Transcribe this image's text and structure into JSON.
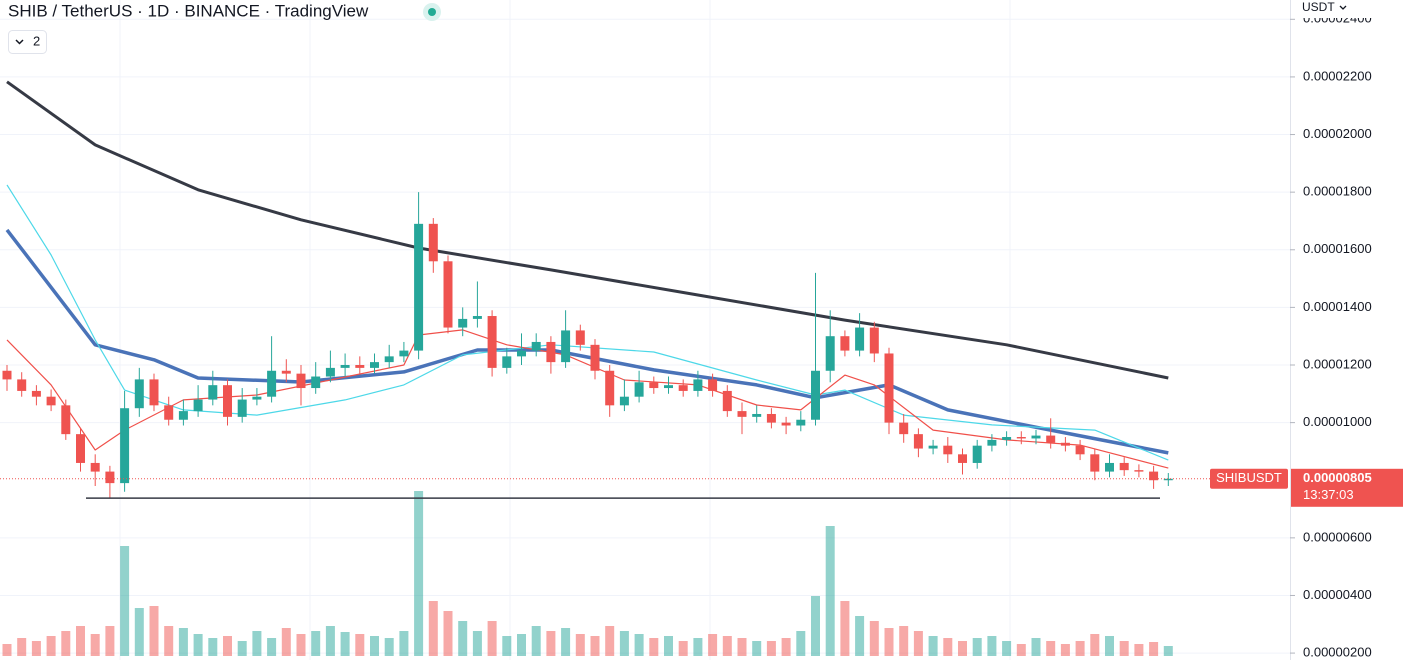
{
  "chart_data": {
    "type": "candlestick",
    "title": "SHIB / TetherUS · 1D · BINANCE · TradingView",
    "indicator_count": "2",
    "currency": "USDT",
    "symbol_label": "SHIBUSDT",
    "last_price": {
      "value": 8.05e-06,
      "label": "0.00000805"
    },
    "countdown": "13:37:03",
    "ylim": [
      1.76e-06,
      2.467e-05
    ],
    "yticks": [
      {
        "value": 2e-06,
        "label": "0.00000200"
      },
      {
        "value": 4e-06,
        "label": "0.00000400"
      },
      {
        "value": 6e-06,
        "label": "0.00000600"
      },
      {
        "value": 1e-05,
        "label": "0.00001000"
      },
      {
        "value": 1.2e-05,
        "label": "0.00001200"
      },
      {
        "value": 1.4e-05,
        "label": "0.00001400"
      },
      {
        "value": 1.6e-05,
        "label": "0.00001600"
      },
      {
        "value": 1.8e-05,
        "label": "0.00001800"
      },
      {
        "value": 2e-05,
        "label": "0.00002000"
      },
      {
        "value": 2.2e-05,
        "label": "0.00002200"
      },
      {
        "value": 2.4e-05,
        "label": "0.00002400"
      }
    ],
    "grid": true,
    "up_color": "#26a69a",
    "down_color": "#ef5350",
    "candles": {
      "open": [
        1.18e-05,
        1.15e-05,
        1.11e-05,
        1.09e-05,
        1.06e-05,
        9.6e-06,
        8.6e-06,
        8.3e-06,
        7.9e-06,
        1.05e-05,
        1.15e-05,
        1.06e-05,
        1.01e-05,
        1.04e-05,
        1.08e-05,
        1.13e-05,
        1.02e-05,
        1.08e-05,
        1.09e-05,
        1.18e-05,
        1.17e-05,
        1.12e-05,
        1.16e-05,
        1.19e-05,
        1.2e-05,
        1.19e-05,
        1.21e-05,
        1.23e-05,
        1.25e-05,
        1.69e-05,
        1.56e-05,
        1.33e-05,
        1.36e-05,
        1.37e-05,
        1.19e-05,
        1.23e-05,
        1.25e-05,
        1.28e-05,
        1.21e-05,
        1.32e-05,
        1.27e-05,
        1.18e-05,
        1.06e-05,
        1.09e-05,
        1.14e-05,
        1.12e-05,
        1.13e-05,
        1.11e-05,
        1.15e-05,
        1.11e-05,
        1.04e-05,
        1.02e-05,
        1.03e-05,
        1e-05,
        9.9e-06,
        1.01e-05,
        1.18e-05,
        1.3e-05,
        1.25e-05,
        1.33e-05,
        1.24e-05,
        1e-05,
        9.6e-06,
        9.1e-06,
        9.2e-06,
        8.9e-06,
        8.6e-06,
        9.2e-06,
        9.4e-06,
        9.5e-06,
        9.45e-06,
        9.55e-06,
        9.3e-06,
        9.2e-06,
        8.9e-06,
        8.3e-06,
        8.6e-06,
        8.35e-06,
        8.3e-06,
        8e-06
      ],
      "high": [
        1.2e-05,
        1.175e-05,
        1.13e-05,
        1.115e-05,
        1.08e-05,
        9.8e-06,
        8.9e-06,
        8.5e-06,
        1.11e-05,
        1.19e-05,
        1.17e-05,
        1.09e-05,
        1.08e-05,
        1.13e-05,
        1.18e-05,
        1.15e-05,
        1.12e-05,
        1.12e-05,
        1.3e-05,
        1.22e-05,
        1.2e-05,
        1.21e-05,
        1.25e-05,
        1.24e-05,
        1.23e-05,
        1.24e-05,
        1.27e-05,
        1.28e-05,
        1.8e-05,
        1.71e-05,
        1.58e-05,
        1.4e-05,
        1.49e-05,
        1.39e-05,
        1.26e-05,
        1.31e-05,
        1.31e-05,
        1.3e-05,
        1.39e-05,
        1.34e-05,
        1.29e-05,
        1.2e-05,
        1.15e-05,
        1.18e-05,
        1.16e-05,
        1.16e-05,
        1.15e-05,
        1.18e-05,
        1.17e-05,
        1.13e-05,
        1.07e-05,
        1.06e-05,
        1.05e-05,
        1.02e-05,
        1.04e-05,
        1.52e-05,
        1.39e-05,
        1.32e-05,
        1.38e-05,
        1.35e-05,
        1.26e-05,
        1.03e-05,
        9.8e-06,
        9.4e-06,
        9.5e-06,
        9.1e-06,
        9.4e-06,
        9.6e-06,
        9.7e-06,
        9.7e-06,
        9.75e-06,
        1.015e-05,
        9.5e-06,
        9.4e-06,
        9.1e-06,
        8.9e-06,
        8.8e-06,
        8.55e-06,
        8.5e-06,
        8.25e-06
      ],
      "low": [
        1.11e-05,
        1.09e-05,
        1.06e-05,
        1.04e-05,
        9.4e-06,
        8.3e-06,
        7.8e-06,
        7.4e-06,
        7.6e-06,
        1.02e-05,
        1.04e-05,
        9.9e-06,
        9.9e-06,
        1.02e-05,
        1.06e-05,
        9.9e-06,
        1e-05,
        1.06e-05,
        1.07e-05,
        1.14e-05,
        1.06e-05,
        1.1e-05,
        1.14e-05,
        1.16e-05,
        1.17e-05,
        1.17e-05,
        1.19e-05,
        1.21e-05,
        1.22e-05,
        1.52e-05,
        1.31e-05,
        1.3e-05,
        1.33e-05,
        1.16e-05,
        1.17e-05,
        1.2e-05,
        1.23e-05,
        1.17e-05,
        1.19e-05,
        1.25e-05,
        1.15e-05,
        1.02e-05,
        1.04e-05,
        1.07e-05,
        1.1e-05,
        1.1e-05,
        1.09e-05,
        1.09e-05,
        1.09e-05,
        1.02e-05,
        9.6e-06,
        1e-05,
        9.8e-06,
        9.6e-06,
        9.7e-06,
        9.9e-06,
        1.14e-05,
        1.23e-05,
        1.23e-05,
        1.21e-05,
        9.6e-06,
        9.3e-06,
        8.8e-06,
        8.9e-06,
        8.6e-06,
        8.2e-06,
        8.4e-06,
        9e-06,
        9.2e-06,
        9.25e-06,
        9.25e-06,
        9.1e-06,
        9e-06,
        8.7e-06,
        8e-06,
        8.1e-06,
        8.15e-06,
        8.1e-06,
        7.7e-06,
        7.8e-06
      ],
      "close": [
        1.15e-05,
        1.11e-05,
        1.09e-05,
        1.06e-05,
        9.6e-06,
        8.6e-06,
        8.3e-06,
        7.9e-06,
        1.05e-05,
        1.15e-05,
        1.06e-05,
        1.01e-05,
        1.04e-05,
        1.08e-05,
        1.13e-05,
        1.02e-05,
        1.08e-05,
        1.09e-05,
        1.18e-05,
        1.17e-05,
        1.12e-05,
        1.16e-05,
        1.19e-05,
        1.2e-05,
        1.19e-05,
        1.21e-05,
        1.23e-05,
        1.25e-05,
        1.69e-05,
        1.56e-05,
        1.33e-05,
        1.36e-05,
        1.37e-05,
        1.19e-05,
        1.23e-05,
        1.25e-05,
        1.28e-05,
        1.21e-05,
        1.32e-05,
        1.27e-05,
        1.18e-05,
        1.06e-05,
        1.09e-05,
        1.14e-05,
        1.12e-05,
        1.13e-05,
        1.11e-05,
        1.15e-05,
        1.11e-05,
        1.04e-05,
        1.02e-05,
        1.03e-05,
        1e-05,
        9.9e-06,
        1.01e-05,
        1.18e-05,
        1.3e-05,
        1.25e-05,
        1.33e-05,
        1.24e-05,
        1e-05,
        9.6e-06,
        9.1e-06,
        9.2e-06,
        8.9e-06,
        8.6e-06,
        9.2e-06,
        9.4e-06,
        9.5e-06,
        9.45e-06,
        9.55e-06,
        9.3e-06,
        9.2e-06,
        8.9e-06,
        8.3e-06,
        8.6e-06,
        8.35e-06,
        8.3e-06,
        8e-06,
        8.05e-06
      ]
    },
    "volume": [
      12,
      18,
      15,
      20,
      25,
      30,
      22,
      30,
      110,
      48,
      50,
      30,
      28,
      22,
      18,
      20,
      15,
      25,
      18,
      28,
      22,
      25,
      30,
      24,
      22,
      20,
      18,
      25,
      165,
      55,
      45,
      35,
      25,
      35,
      20,
      22,
      30,
      25,
      28,
      22,
      20,
      30,
      25,
      22,
      18,
      20,
      15,
      18,
      22,
      20,
      18,
      15,
      15,
      18,
      25,
      60,
      130,
      55,
      40,
      35,
      28,
      30,
      25,
      20,
      18,
      15,
      18,
      20,
      15,
      12,
      18,
      15,
      12,
      15,
      22,
      20,
      15,
      12,
      14,
      10
    ],
    "support_line": 7.38e-06,
    "ma_series": [
      {
        "color": "#363a45",
        "x": [
          0,
          6,
          13,
          20,
          28,
          37,
          47,
          57,
          68,
          79
        ],
        "values": [
          2.183e-05,
          1.964e-05,
          1.808e-05,
          1.704e-05,
          1.606e-05,
          1.53e-05,
          1.443e-05,
          1.356e-05,
          1.27e-05,
          1.155e-05
        ]
      },
      {
        "color": "#4a73b8",
        "x": [
          0,
          6,
          10,
          13,
          20,
          27,
          32,
          37,
          44,
          51,
          55,
          60,
          64,
          71,
          79
        ],
        "values": [
          1.669e-05,
          1.27e-05,
          1.218e-05,
          1.155e-05,
          1.141e-05,
          1.176e-05,
          1.252e-05,
          1.252e-05,
          1.183e-05,
          1.131e-05,
          1.086e-05,
          1.131e-05,
          1.044e-05,
          9.74e-06,
          8.95e-06
        ]
      },
      {
        "color": "#4dd8e8",
        "x": [
          0,
          3,
          6,
          8,
          12,
          17,
          23,
          27,
          31,
          37,
          44,
          51,
          55,
          57,
          61,
          67,
          74,
          79
        ],
        "values": [
          1.825e-05,
          1.582e-05,
          1.287e-05,
          1.113e-05,
          1.044e-05,
          1.026e-05,
          1.079e-05,
          1.131e-05,
          1.235e-05,
          1.27e-05,
          1.245e-05,
          1.148e-05,
          1.096e-05,
          1.113e-05,
          1.026e-05,
          9.92e-06,
          9.74e-06,
          8.7e-06
        ]
      },
      {
        "color": "#f0504a",
        "x": [
          0,
          3,
          6,
          8,
          12,
          17,
          22,
          27,
          28,
          31,
          34,
          38,
          42,
          47,
          51,
          54,
          57,
          59,
          63,
          68,
          73,
          79
        ],
        "values": [
          1.287e-05,
          1.131e-05,
          9.05e-06,
          9.74e-06,
          1.079e-05,
          1.096e-05,
          1.148e-05,
          1.2e-05,
          1.304e-05,
          1.322e-05,
          1.27e-05,
          1.235e-05,
          1.148e-05,
          1.131e-05,
          1.061e-05,
          1.044e-05,
          1.165e-05,
          1.131e-05,
          9.74e-06,
          9.4e-06,
          9.22e-06,
          8.42e-06
        ]
      }
    ]
  }
}
